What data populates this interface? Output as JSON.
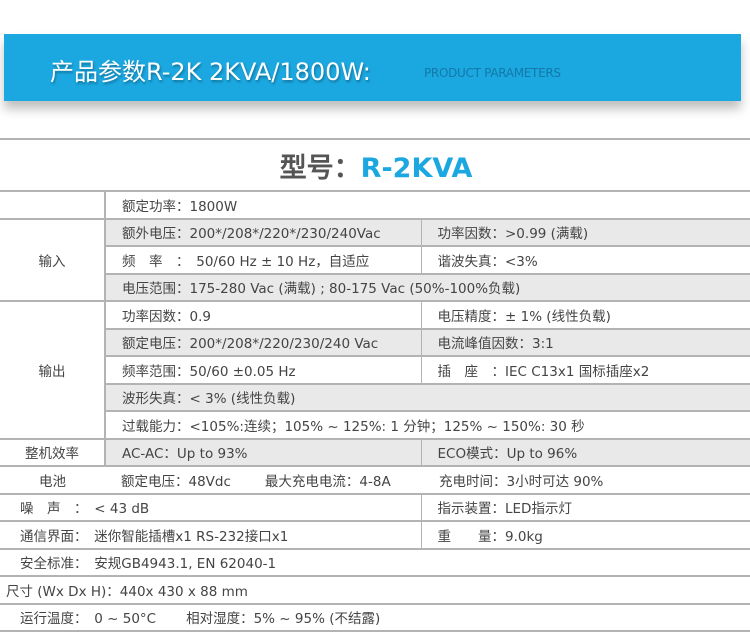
{
  "banner": {
    "title": "产品参数R-2K 2KVA/1800W:",
    "subtitle": "PRODUCT PARAMETERS",
    "color": "#1ba7e0"
  },
  "header": {
    "model_label": "型号：",
    "model_value": "R-2KVA"
  },
  "rows": {
    "rated_power": "额定功率：1800W",
    "input": {
      "label": "输入",
      "voltage": "额外电压：200*/208*/220*/230/240Vac",
      "pf": "功率因数：>0.99 (满载)",
      "freq": "频　率　：　50/60 Hz ± 10 Hz，自适应",
      "thd": "谐波失真：<3%",
      "range": "电压范围：175-280 Vac (满载) ; 80-175 Vac (50%-100%负载)"
    },
    "output": {
      "label": "输出",
      "pf": "功率因数：0.9",
      "accuracy": "电压精度：± 1% (线性负载)",
      "voltage": "额定电压：200*/208*/220/230/240 Vac",
      "crest": "电流峰值因数：3:1",
      "freq": "频率范围：50/60 ±0.05 Hz",
      "socket": "插　座　：IEC C13x1  国标插座x2",
      "distortion": "波形失真：< 3% (线性负载)",
      "overload": "过载能力：<105%:连续；105% ~ 125%: 1 分钟；125% ~ 150%: 30 秒"
    },
    "efficiency": {
      "label": "整机效率",
      "acac": "AC-AC：Up to 93%",
      "eco": "ECO模式：Up to 96%"
    },
    "battery": {
      "label": "电池",
      "voltage": "额定电压：48Vdc",
      "charge_current": "最大充电电流：4-8A",
      "charge_time": "充电时间：3小时可达 90%"
    },
    "noise": {
      "text": "噪　声　：　< 43 dB",
      "indicator": "指示装置：LED指示灯"
    },
    "comm": {
      "text": "通信界面：　迷你智能插槽x1  RS-232接口x1",
      "weight": "重　　量：9.0kg"
    },
    "safety": "安全标准：　安规GB4943.1, EN 62040-1",
    "size": "尺寸 (Wx Dx H)：440x 430 x 88 mm",
    "env": {
      "temp": "运行温度：　0 ~ 50°C",
      "humidity": "相对湿度：5% ~ 95% (不结露)"
    }
  }
}
